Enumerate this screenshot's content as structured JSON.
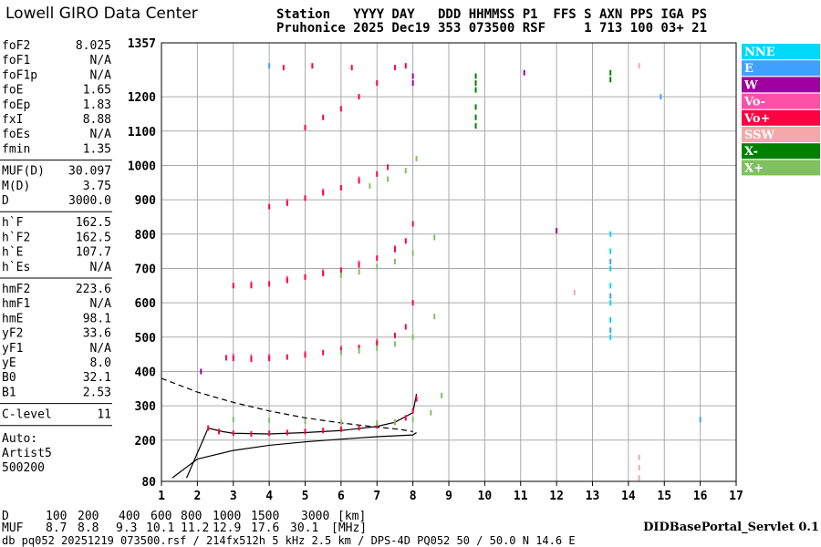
{
  "header": {
    "title": "Lowell GIRO Data Center",
    "line1": "Station   YYYY DAY   DDD HHMMSS P1  FFS S AXN PPS IGA PS",
    "line2": "Pruhonice 2025 Dec19 353 073500 RSF     1 713 100 03+ 21"
  },
  "parameters": [
    [
      [
        "foF2",
        "8.025"
      ],
      [
        "foF1",
        "N/A"
      ],
      [
        "foF1p",
        "N/A"
      ],
      [
        "foE",
        "1.65"
      ],
      [
        "foEp",
        "1.83"
      ],
      [
        "fxI",
        "8.88"
      ],
      [
        "foEs",
        "N/A"
      ],
      [
        "fmin",
        "1.35"
      ]
    ],
    [
      [
        "MUF(D)",
        "30.097"
      ],
      [
        "M(D)",
        "3.75"
      ],
      [
        "D",
        "3000.0"
      ]
    ],
    [
      [
        "h`F",
        "162.5"
      ],
      [
        "h`F2",
        "162.5"
      ],
      [
        "h`E",
        "107.7"
      ],
      [
        "h`Es",
        "N/A"
      ]
    ],
    [
      [
        "hmF2",
        "223.6"
      ],
      [
        "hmF1",
        "N/A"
      ],
      [
        "hmE",
        "98.1"
      ],
      [
        "yF2",
        "33.6"
      ],
      [
        "yF1",
        "N/A"
      ],
      [
        "yE",
        "8.0"
      ],
      [
        "B0",
        "32.1"
      ],
      [
        "B1",
        "2.53"
      ]
    ],
    [
      [
        "C-level",
        "11"
      ]
    ]
  ],
  "auto": [
    "Auto:",
    "Artist5",
    "500200"
  ],
  "scale": {
    "d_label": "D",
    "d": [
      100,
      200,
      400,
      600,
      800,
      1000,
      1500,
      3000
    ],
    "d_unit": "[km]",
    "muf_label": "MUF",
    "muf": [
      8.7,
      8.8,
      9.3,
      10.1,
      11.2,
      12.9,
      17.6,
      30.1
    ],
    "muf_unit": "[MHz]"
  },
  "footer": {
    "left": "db pq052 20251219 073500.rsf / 214fx512h 5 kHz 2.5 km / DPS-4D PQ052 50 / 50.0 N 14.6 E",
    "right": "DIDBasePortal_Servlet 0.1"
  },
  "chart_data": {
    "type": "scatter",
    "xlim": [
      1,
      17
    ],
    "xticks": [
      1,
      2,
      3,
      4,
      5,
      6,
      7,
      8,
      9,
      10,
      11,
      12,
      13,
      14,
      15,
      16,
      17
    ],
    "ylim": [
      80,
      1357
    ],
    "yticks": [
      80,
      200,
      300,
      400,
      500,
      600,
      700,
      800,
      900,
      1000,
      1100,
      1200,
      1357
    ],
    "grid": true,
    "series": [
      {
        "name": "NNE",
        "color": "#00d8f8",
        "x": [
          13.5,
          13.5,
          13.5,
          13.5,
          13.5,
          13.5,
          13.5
        ],
        "values": [
          500,
          550,
          600,
          650,
          700,
          750,
          800
        ]
      },
      {
        "name": "E",
        "color": "#40a0ff",
        "x": [
          13.5,
          13.5,
          13.5,
          4,
          14.9,
          16
        ],
        "values": [
          520,
          620,
          720,
          1290,
          1200,
          260
        ]
      },
      {
        "name": "W",
        "color": "#a000a0",
        "x": [
          8,
          8,
          11.1,
          12,
          2.1
        ],
        "values": [
          1260,
          1240,
          1270,
          810,
          400
        ]
      },
      {
        "name": "Vo-",
        "color": "#ff50a8",
        "x": [
          3,
          3.5,
          4,
          5,
          6,
          7,
          3.5,
          4.5,
          5.5,
          6.5,
          7.5,
          4.5,
          5.5,
          6.5
        ],
        "values": [
          445,
          442,
          444,
          452,
          468,
          488,
          655,
          670,
          690,
          715,
          760,
          895,
          925,
          960
        ]
      },
      {
        "name": "Vo+",
        "color": "#ff0040",
        "x": [
          2.3,
          2.6,
          3,
          3.5,
          4,
          4.5,
          5,
          5.5,
          6,
          6.5,
          7,
          7.5,
          7.8,
          8,
          8.1,
          2.8,
          3,
          3.5,
          4,
          4.5,
          5,
          5.5,
          6,
          6.5,
          7,
          7.5,
          7.8,
          8,
          3,
          3.5,
          4,
          4.5,
          5,
          5.5,
          6,
          6.5,
          7,
          7.5,
          7.8,
          8,
          4,
          4.5,
          5,
          5.5,
          6,
          6.5,
          7,
          7.3,
          5,
          5.5,
          6,
          6.5,
          7,
          7.5,
          4.4,
          5.2,
          6.3,
          7.8
        ],
        "values": [
          235,
          225,
          220,
          218,
          220,
          222,
          225,
          228,
          232,
          236,
          242,
          252,
          265,
          285,
          320,
          440,
          438,
          436,
          438,
          442,
          448,
          455,
          462,
          470,
          482,
          505,
          530,
          600,
          650,
          650,
          655,
          665,
          675,
          685,
          695,
          710,
          730,
          755,
          780,
          830,
          880,
          890,
          905,
          920,
          935,
          955,
          975,
          995,
          1110,
          1140,
          1165,
          1200,
          1240,
          1285,
          1285,
          1290,
          1285,
          1290
        ]
      },
      {
        "name": "SSW",
        "color": "#f4a8a8",
        "x": [
          12.5,
          14.3,
          14.3,
          14.3,
          14.3
        ],
        "values": [
          630,
          90,
          120,
          150,
          1290
        ]
      },
      {
        "name": "X-",
        "color": "#008000",
        "x": [
          9.75,
          9.75,
          9.75,
          9.75,
          9.75,
          9.75,
          13.5,
          13.5
        ],
        "values": [
          1260,
          1240,
          1220,
          1170,
          1140,
          1115,
          1270,
          1250
        ]
      },
      {
        "name": "X+",
        "color": "#80c060",
        "x": [
          3,
          4,
          5,
          6,
          7,
          7.5,
          8,
          8.5,
          8.8,
          6,
          6.5,
          7,
          7.5,
          8,
          8.6,
          6,
          6.5,
          7,
          7.5,
          8,
          8.6,
          6.8,
          7.3,
          7.8,
          8.1
        ],
        "values": [
          260,
          258,
          255,
          252,
          250,
          252,
          260,
          280,
          330,
          455,
          460,
          468,
          480,
          500,
          560,
          680,
          690,
          705,
          720,
          745,
          790,
          940,
          960,
          985,
          1020
        ]
      }
    ],
    "lines": [
      {
        "x": [
          1,
          2,
          3,
          4,
          5,
          6,
          7,
          7.6,
          8
        ],
        "values": [
          380,
          340,
          310,
          285,
          265,
          250,
          238,
          232,
          225
        ],
        "dash": true
      },
      {
        "x": [
          1.3,
          2,
          3,
          4,
          5,
          6,
          7,
          8,
          8.1
        ],
        "values": [
          90,
          145,
          170,
          185,
          195,
          203,
          210,
          215,
          222
        ],
        "dash": false
      },
      {
        "x": [
          1.7,
          2.3,
          2.7,
          3,
          4,
          5,
          6,
          7,
          7.5,
          8,
          8.1
        ],
        "values": [
          90,
          235,
          225,
          220,
          218,
          222,
          228,
          240,
          252,
          280,
          335
        ],
        "dash": false
      }
    ]
  }
}
